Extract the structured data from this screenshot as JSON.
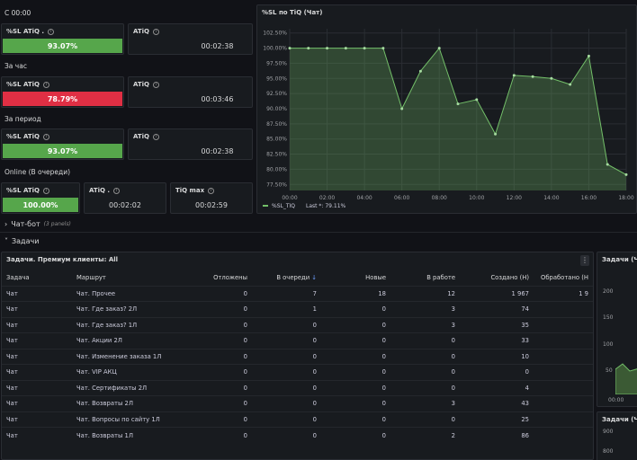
{
  "sections": {
    "since": "С 00:00",
    "hour": "За час",
    "period": "За период",
    "online": "Online (В очереди)"
  },
  "stats": {
    "since_sl_title": "%SL ATiQ .",
    "since_sl_value": "93.07%",
    "since_atiq_title": "ATiQ",
    "since_atiq_value": "00:02:38",
    "hour_sl_title": "%SL ATiQ",
    "hour_sl_value": "78.79%",
    "hour_atiq_title": "ATiQ",
    "hour_atiq_value": "00:03:46",
    "period_sl_title": "%SL ATiQ",
    "period_sl_value": "93.07%",
    "period_atiq_title": "ATiQ",
    "period_atiq_value": "00:02:38",
    "online_sl_title": "%SL ATiQ",
    "online_sl_value": "100.00%",
    "online_atiq_title": "ATiQ .",
    "online_atiq_value": "00:02:02",
    "online_tiq_title": "TiQ max",
    "online_tiq_value": "00:02:59"
  },
  "colors": {
    "good": "#56a64b",
    "bad": "#e02f44",
    "series": "#73bf69"
  },
  "chart_panel": {
    "title": "%SL по TiQ (Чат)",
    "legend_name": "%SL_TIQ",
    "legend_last": "Last *: 79.11%"
  },
  "chart_data": {
    "type": "area",
    "title": "%SL по TiQ (Чат)",
    "x_ticks": [
      "00:00",
      "02:00",
      "04:00",
      "06:00",
      "08:00",
      "10:00",
      "12:00",
      "14:00",
      "16:00",
      "18:00"
    ],
    "y_ticks": [
      "102.50%",
      "100.00%",
      "97.50%",
      "95.00%",
      "92.50%",
      "90.00%",
      "87.50%",
      "85.00%",
      "82.50%",
      "80.00%",
      "77.50%"
    ],
    "ylim": [
      76.5,
      103.2
    ],
    "xlim": [
      0,
      18
    ],
    "series": [
      {
        "name": "%SL_TIQ",
        "x": [
          0,
          1,
          2,
          3,
          4,
          5,
          6,
          7,
          8,
          9,
          10,
          11,
          12,
          13,
          14,
          15,
          16,
          17,
          18
        ],
        "values": [
          100.0,
          100.0,
          100.0,
          100.0,
          100.0,
          100.0,
          90.0,
          96.2,
          100.0,
          90.8,
          91.5,
          85.8,
          95.5,
          95.3,
          95.0,
          94.0,
          98.7,
          80.8,
          79.11
        ]
      }
    ],
    "grid": true,
    "legend": "bottom-left"
  },
  "rows": {
    "chatbot_label": "Чат-бот",
    "chatbot_count": "(3 panels)",
    "tasks_label": "Задачи"
  },
  "tasks_table": {
    "title": "Задачи. Премиум клиенты: All",
    "columns": [
      "Задача",
      "Маршрут",
      "Отложены",
      "В очереди",
      "Новые",
      "В работе",
      "Создано (Н)",
      "Обработано (Н"
    ],
    "sort_indicator": "↓",
    "rows": [
      [
        "Чат",
        "Чат. Прочее",
        "0",
        "7",
        "18",
        "12",
        "1 967",
        "1 9"
      ],
      [
        "Чат",
        "Чат. Где заказ? 2Л",
        "0",
        "1",
        "0",
        "3",
        "74",
        ""
      ],
      [
        "Чат",
        "Чат. Где заказ? 1Л",
        "0",
        "0",
        "0",
        "3",
        "35",
        ""
      ],
      [
        "Чат",
        "Чат. Акции 2Л",
        "0",
        "0",
        "0",
        "0",
        "33",
        ""
      ],
      [
        "Чат",
        "Чат. Изменение заказа 1Л",
        "0",
        "0",
        "0",
        "0",
        "10",
        ""
      ],
      [
        "Чат",
        "Чат. VIP АКЦ",
        "0",
        "0",
        "0",
        "0",
        "0",
        ""
      ],
      [
        "Чат",
        "Чат. Сертификаты 2Л",
        "0",
        "0",
        "0",
        "0",
        "4",
        ""
      ],
      [
        "Чат",
        "Чат. Возвраты 2Л",
        "0",
        "0",
        "0",
        "3",
        "43",
        ""
      ],
      [
        "Чат",
        "Чат. Вопросы по сайту 1Л",
        "0",
        "0",
        "0",
        "0",
        "25",
        ""
      ],
      [
        "Чат",
        "Чат. Возвраты 1Л",
        "0",
        "0",
        "0",
        "2",
        "86",
        ""
      ]
    ],
    "menu_icon": "kebab-icon"
  },
  "side_panels": {
    "top_title": "Задачи (Чат",
    "top_y_ticks": [
      "200",
      "150",
      "100",
      "50"
    ],
    "top_x_tick": "00:00",
    "bottom_title": "Задачи (Ча",
    "bottom_y_ticks": [
      "900",
      "800"
    ]
  }
}
